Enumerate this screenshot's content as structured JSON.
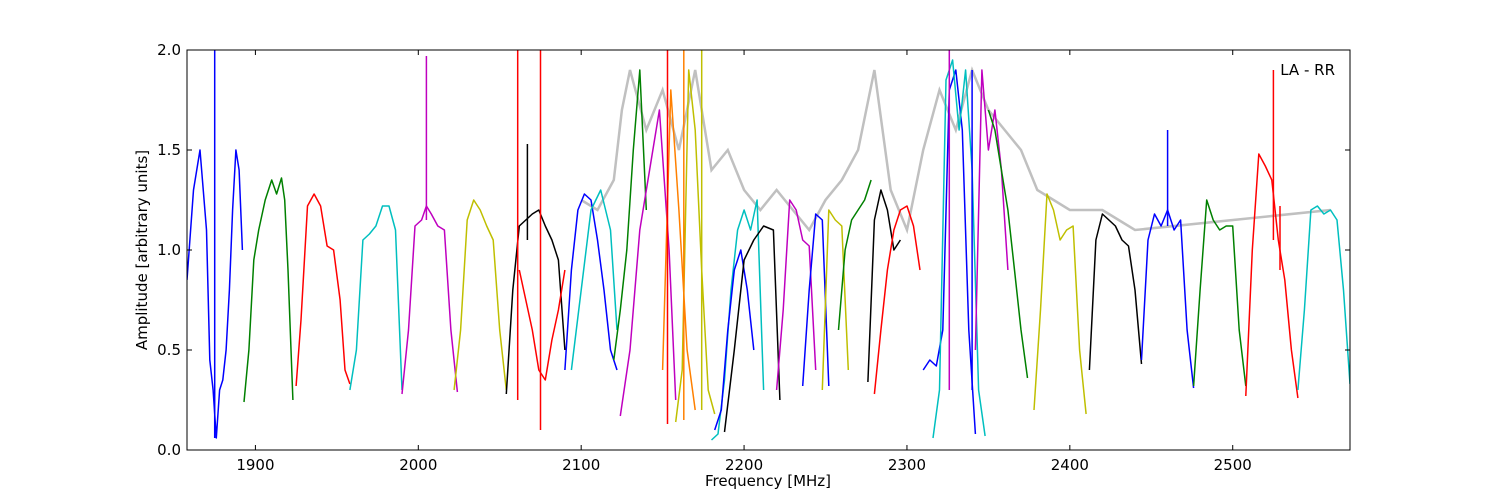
{
  "chart_data": {
    "type": "line",
    "title": "",
    "xlabel": "Frequency [MHz]",
    "ylabel": "Amplitude [arbitrary units]",
    "xlim": [
      1858,
      2572
    ],
    "ylim": [
      0.0,
      2.0
    ],
    "xticks": [
      1900,
      2000,
      2100,
      2200,
      2300,
      2400,
      2500
    ],
    "xtick_labels": [
      "1900",
      "2000",
      "2100",
      "2200",
      "2300",
      "2400",
      "2500"
    ],
    "yticks": [
      0.0,
      0.5,
      1.0,
      1.5,
      2.0
    ],
    "ytick_labels": [
      "0.0",
      "0.5",
      "1.0",
      "1.5",
      "2.0"
    ],
    "grid": false,
    "annotation": "LA - RR",
    "annotation_position": "top-right",
    "background_series": {
      "color": "#c0c0c0",
      "x": [
        2100,
        2110,
        2120,
        2125,
        2130,
        2140,
        2150,
        2160,
        2170,
        2180,
        2190,
        2200,
        2210,
        2220,
        2230,
        2240,
        2250,
        2260,
        2270,
        2280,
        2290,
        2300,
        2310,
        2320,
        2330,
        2340,
        2350,
        2360,
        2370,
        2380,
        2400,
        2410,
        2420,
        2430,
        2440,
        2560
      ],
      "y": [
        1.25,
        1.2,
        1.35,
        1.7,
        1.9,
        1.6,
        1.8,
        1.5,
        1.9,
        1.4,
        1.5,
        1.3,
        1.2,
        1.3,
        1.2,
        1.1,
        1.25,
        1.35,
        1.5,
        1.9,
        1.3,
        1.1,
        1.5,
        1.8,
        1.6,
        1.9,
        1.7,
        1.6,
        1.5,
        1.3,
        1.2,
        1.2,
        1.2,
        1.15,
        1.1,
        1.2
      ]
    },
    "series": [
      {
        "color": "#0000ff",
        "x": [
          1858,
          1862,
          1866,
          1870,
          1872,
          1874,
          1876,
          1878,
          1880,
          1882,
          1884,
          1886,
          1888,
          1890,
          1892
        ],
        "y": [
          0.85,
          1.3,
          1.5,
          1.1,
          0.45,
          0.3,
          0.06,
          0.3,
          0.35,
          0.5,
          0.8,
          1.2,
          1.5,
          1.4,
          1.0
        ]
      },
      {
        "color": "#008000",
        "x": [
          1893,
          1896,
          1899,
          1902,
          1906,
          1910,
          1913,
          1916,
          1918,
          1920,
          1923
        ],
        "y": [
          0.24,
          0.5,
          0.95,
          1.1,
          1.25,
          1.35,
          1.28,
          1.36,
          1.25,
          0.9,
          0.25
        ]
      },
      {
        "color": "#ff0000",
        "x": [
          1925,
          1928,
          1932,
          1936,
          1940,
          1944,
          1948,
          1952,
          1955,
          1958
        ],
        "y": [
          0.32,
          0.65,
          1.22,
          1.28,
          1.22,
          1.02,
          1.0,
          0.75,
          0.4,
          0.33
        ]
      },
      {
        "color": "#00bfbf",
        "x": [
          1958,
          1962,
          1966,
          1970,
          1974,
          1978,
          1982,
          1986,
          1990
        ],
        "y": [
          0.3,
          0.5,
          1.05,
          1.08,
          1.12,
          1.22,
          1.22,
          1.1,
          0.3
        ]
      },
      {
        "color": "#bf00bf",
        "x": [
          1990,
          1994,
          1998,
          2002,
          2005,
          2008,
          2012,
          2016,
          2020,
          2024
        ],
        "y": [
          0.28,
          0.6,
          1.12,
          1.15,
          1.22,
          1.18,
          1.12,
          1.1,
          0.6,
          0.29
        ]
      },
      {
        "color": "#bfbf00",
        "x": [
          2022,
          2026,
          2030,
          2034,
          2038,
          2042,
          2046,
          2050,
          2054
        ],
        "y": [
          0.3,
          0.6,
          1.15,
          1.25,
          1.2,
          1.12,
          1.05,
          0.6,
          0.3
        ]
      },
      {
        "color": "#000000",
        "x": [
          2054,
          2058,
          2062,
          2066,
          2070,
          2074,
          2078,
          2082,
          2086,
          2090
        ],
        "y": [
          0.28,
          0.8,
          1.12,
          1.15,
          1.18,
          1.2,
          1.12,
          1.05,
          0.95,
          0.5
        ]
      },
      {
        "color": "#ff0000",
        "x": [
          2062,
          2066,
          2070,
          2074,
          2078,
          2082,
          2086,
          2090
        ],
        "y": [
          0.9,
          0.75,
          0.6,
          0.4,
          0.35,
          0.55,
          0.7,
          0.9
        ]
      },
      {
        "color": "#0000ff",
        "x": [
          2090,
          2094,
          2098,
          2102,
          2106,
          2110,
          2114,
          2118,
          2122
        ],
        "y": [
          0.4,
          0.9,
          1.2,
          1.28,
          1.25,
          1.05,
          0.8,
          0.5,
          0.4
        ]
      },
      {
        "color": "#00bfbf",
        "x": [
          2094,
          2100,
          2106,
          2112,
          2118,
          2122
        ],
        "y": [
          0.4,
          0.8,
          1.2,
          1.3,
          1.1,
          0.6
        ]
      },
      {
        "color": "#008000",
        "x": [
          2120,
          2124,
          2128,
          2132,
          2136,
          2140
        ],
        "y": [
          0.45,
          0.7,
          1.0,
          1.5,
          1.9,
          1.2
        ]
      },
      {
        "color": "#bf00bf",
        "x": [
          2124,
          2130,
          2136,
          2142,
          2148,
          2154,
          2158
        ],
        "y": [
          0.17,
          0.5,
          1.1,
          1.4,
          1.7,
          1.0,
          0.25
        ]
      },
      {
        "color": "#ff8000",
        "x": [
          2150,
          2155,
          2160,
          2165,
          2170
        ],
        "y": [
          0.4,
          1.8,
          1.2,
          0.5,
          0.2
        ]
      },
      {
        "color": "#bfbf00",
        "x": [
          2158,
          2162,
          2166,
          2170,
          2174,
          2178,
          2182
        ],
        "y": [
          0.14,
          0.4,
          1.9,
          1.6,
          0.9,
          0.3,
          0.18
        ]
      },
      {
        "color": "#00bfbf",
        "x": [
          2180,
          2184,
          2188,
          2192,
          2196,
          2200,
          2204,
          2208,
          2212
        ],
        "y": [
          0.05,
          0.08,
          0.35,
          0.8,
          1.1,
          1.2,
          1.1,
          1.25,
          0.3
        ]
      },
      {
        "color": "#0000ff",
        "x": [
          2182,
          2186,
          2190,
          2194,
          2198,
          2202,
          2206
        ],
        "y": [
          0.1,
          0.2,
          0.6,
          0.9,
          1.0,
          0.8,
          0.5
        ]
      },
      {
        "color": "#000000",
        "x": [
          2188,
          2194,
          2200,
          2206,
          2212,
          2218,
          2222
        ],
        "y": [
          0.09,
          0.5,
          0.95,
          1.05,
          1.12,
          1.1,
          0.25
        ]
      },
      {
        "color": "#bf00bf",
        "x": [
          2220,
          2224,
          2228,
          2232,
          2236,
          2240,
          2244
        ],
        "y": [
          0.3,
          0.7,
          1.25,
          1.2,
          1.05,
          1.02,
          0.4
        ]
      },
      {
        "color": "#0000ff",
        "x": [
          2236,
          2240,
          2244,
          2248,
          2252
        ],
        "y": [
          0.32,
          0.8,
          1.18,
          1.15,
          0.32
        ]
      },
      {
        "color": "#bfbf00",
        "x": [
          2248,
          2252,
          2256,
          2260,
          2264
        ],
        "y": [
          0.3,
          1.2,
          1.15,
          1.12,
          0.4
        ]
      },
      {
        "color": "#008000",
        "x": [
          2258,
          2262,
          2266,
          2270,
          2274,
          2278
        ],
        "y": [
          0.6,
          1.0,
          1.15,
          1.2,
          1.25,
          1.35
        ]
      },
      {
        "color": "#000000",
        "x": [
          2276,
          2280,
          2284,
          2288,
          2292,
          2296
        ],
        "y": [
          0.34,
          1.15,
          1.3,
          1.2,
          1.0,
          1.05
        ]
      },
      {
        "color": "#ff0000",
        "x": [
          2280,
          2284,
          2288,
          2292,
          2296,
          2300,
          2304,
          2308
        ],
        "y": [
          0.28,
          0.6,
          0.9,
          1.1,
          1.2,
          1.22,
          1.12,
          0.9
        ]
      },
      {
        "color": "#0000ff",
        "x": [
          2310,
          2314,
          2318,
          2322,
          2326,
          2330,
          2334,
          2338,
          2342
        ],
        "y": [
          0.4,
          0.45,
          0.42,
          0.6,
          1.8,
          1.9,
          1.6,
          0.6,
          0.08
        ]
      },
      {
        "color": "#00bfbf",
        "x": [
          2316,
          2320,
          2324,
          2328,
          2332,
          2336,
          2340,
          2344,
          2348
        ],
        "y": [
          0.06,
          0.3,
          1.85,
          1.95,
          1.6,
          1.9,
          1.4,
          0.3,
          0.07
        ]
      },
      {
        "color": "#bf00bf",
        "x": [
          2342,
          2346,
          2350,
          2354,
          2358,
          2362
        ],
        "y": [
          0.5,
          1.9,
          1.5,
          1.7,
          1.4,
          0.9
        ]
      },
      {
        "color": "#008000",
        "x": [
          2350,
          2354,
          2358,
          2362,
          2366,
          2370,
          2374
        ],
        "y": [
          1.7,
          1.6,
          1.4,
          1.2,
          0.9,
          0.6,
          0.36
        ]
      },
      {
        "color": "#bfbf00",
        "x": [
          2378,
          2382,
          2386,
          2390,
          2394,
          2398,
          2402,
          2406,
          2410
        ],
        "y": [
          0.2,
          0.7,
          1.28,
          1.2,
          1.05,
          1.1,
          1.12,
          0.5,
          0.18
        ]
      },
      {
        "color": "#000000",
        "x": [
          2412,
          2416,
          2420,
          2424,
          2428,
          2432,
          2436,
          2440,
          2444
        ],
        "y": [
          0.4,
          1.05,
          1.18,
          1.15,
          1.12,
          1.05,
          1.02,
          0.8,
          0.43
        ]
      },
      {
        "color": "#0000ff",
        "x": [
          2444,
          2448,
          2452,
          2456,
          2460,
          2464,
          2468,
          2472,
          2476
        ],
        "y": [
          0.45,
          1.05,
          1.18,
          1.12,
          1.2,
          1.1,
          1.15,
          0.6,
          0.31
        ]
      },
      {
        "color": "#008000",
        "x": [
          2476,
          2480,
          2484,
          2488,
          2492,
          2496,
          2500,
          2504,
          2508
        ],
        "y": [
          0.32,
          0.8,
          1.25,
          1.15,
          1.1,
          1.12,
          1.12,
          0.6,
          0.32
        ]
      },
      {
        "color": "#ff0000",
        "x": [
          2508,
          2512,
          2516,
          2520,
          2524,
          2528,
          2532,
          2536,
          2540
        ],
        "y": [
          0.27,
          1.0,
          1.48,
          1.42,
          1.35,
          1.05,
          0.85,
          0.5,
          0.26
        ]
      },
      {
        "color": "#00bfbf",
        "x": [
          2540,
          2544,
          2548,
          2552,
          2556,
          2560,
          2564,
          2568,
          2572
        ],
        "y": [
          0.3,
          0.7,
          1.2,
          1.22,
          1.18,
          1.2,
          1.15,
          0.8,
          0.33
        ]
      }
    ],
    "spikes": [
      {
        "color": "#0000ff",
        "x": 1875,
        "y0": 0.06,
        "y1": 2.0
      },
      {
        "color": "#bf00bf",
        "x": 2005,
        "y0": 1.15,
        "y1": 1.97
      },
      {
        "color": "#ff0000",
        "x": 2061,
        "y0": 0.25,
        "y1": 2.0
      },
      {
        "color": "#ff0000",
        "x": 2075,
        "y0": 0.1,
        "y1": 2.0
      },
      {
        "color": "#000000",
        "x": 2067,
        "y0": 1.05,
        "y1": 1.53
      },
      {
        "color": "#ff0000",
        "x": 2153,
        "y0": 0.13,
        "y1": 2.0
      },
      {
        "color": "#bfbf00",
        "x": 2174,
        "y0": 0.2,
        "y1": 2.0
      },
      {
        "color": "#ff8000",
        "x": 2163,
        "y0": 0.15,
        "y1": 2.0
      },
      {
        "color": "#0000ff",
        "x": 2460,
        "y0": 1.12,
        "y1": 1.6
      },
      {
        "color": "#ff0000",
        "x": 2525,
        "y0": 1.05,
        "y1": 1.9
      },
      {
        "color": "#ff0000",
        "x": 2529,
        "y0": 0.9,
        "y1": 1.22
      },
      {
        "color": "#0000ff",
        "x": 2340,
        "y0": 0.3,
        "y1": 1.9
      },
      {
        "color": "#bf00bf",
        "x": 2326,
        "y0": 0.3,
        "y1": 2.0
      }
    ]
  }
}
